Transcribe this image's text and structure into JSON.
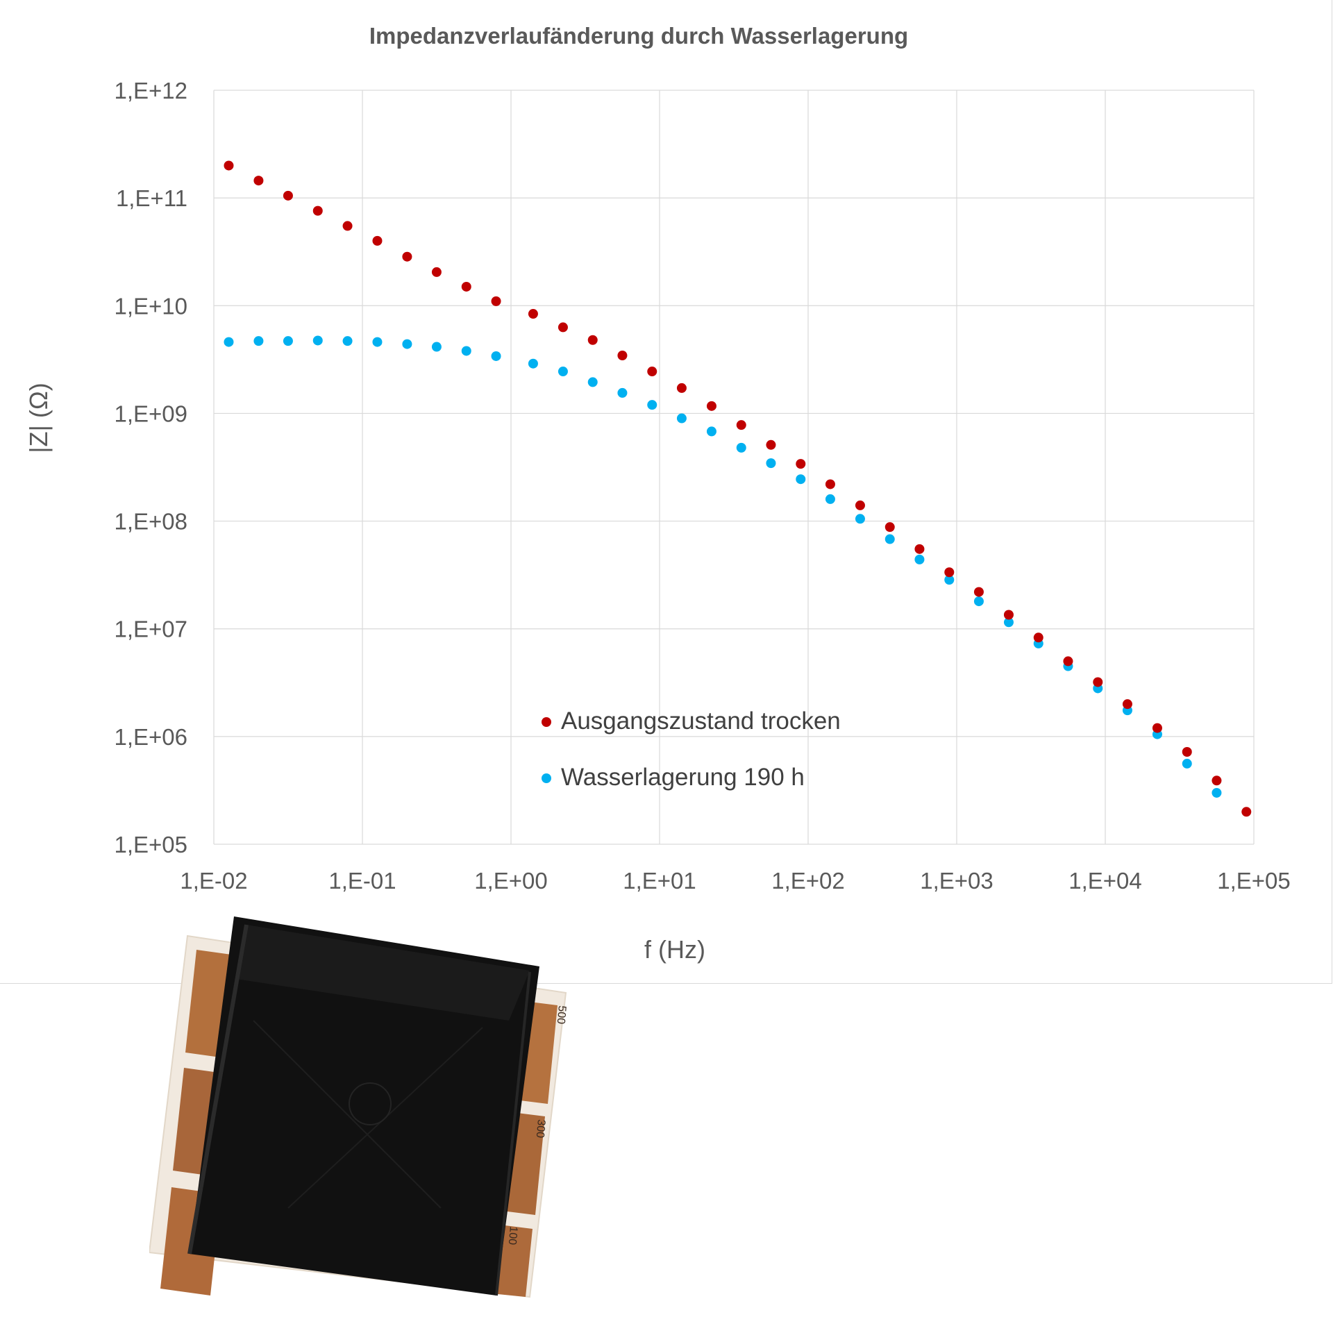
{
  "chart_data": {
    "type": "scatter",
    "title": "Impedanzverlaufänderung durch Wasserlagerung",
    "xlabel": "f (Hz)",
    "ylabel": "|Z| (Ω)",
    "x_scale": "log",
    "y_scale": "log",
    "xlim": [
      0.01,
      100000
    ],
    "ylim": [
      100000,
      1000000000000
    ],
    "x_ticks": [
      "1,E-02",
      "1,E-01",
      "1,E+00",
      "1,E+01",
      "1,E+02",
      "1,E+03",
      "1,E+04",
      "1,E+05"
    ],
    "y_ticks": [
      "1,E+05",
      "1,E+06",
      "1,E+07",
      "1,E+08",
      "1,E+09",
      "1,E+10",
      "1,E+11",
      "1,E+12"
    ],
    "grid": true,
    "legend_position": "lower-center",
    "series": [
      {
        "name": "Ausgangszustand trocken",
        "color": "#c00000",
        "x": [
          0.0126,
          0.02,
          0.0316,
          0.0501,
          0.0794,
          0.126,
          0.2,
          0.316,
          0.501,
          0.794,
          1.41,
          2.24,
          3.55,
          5.62,
          8.91,
          14.1,
          22.4,
          35.5,
          56.2,
          89.1,
          141,
          224,
          355,
          562,
          891,
          1410,
          2240,
          3550,
          5620,
          8910,
          14100,
          22400,
          35500,
          56200,
          89100
        ],
        "y": [
          200000000000.0,
          145000000000.0,
          105000000000.0,
          76000000000.0,
          55000000000.0,
          40000000000.0,
          28500000000.0,
          20500000000.0,
          15000000000.0,
          11000000000.0,
          8400000000.0,
          6300000000.0,
          4800000000.0,
          3450000000.0,
          2450000000.0,
          1720000000.0,
          1170000000.0,
          780000000.0,
          510000000.0,
          340000000.0,
          220000000.0,
          140000000.0,
          88000000.0,
          55000000.0,
          33500000.0,
          22000000.0,
          13500000.0,
          8300000.0,
          5000000.0,
          3200000.0,
          2000000.0,
          1200000.0,
          720000.0,
          390000.0,
          200000.0
        ]
      },
      {
        "name": "Wasserlagerung 190 h",
        "color": "#00b0f0",
        "x": [
          0.0126,
          0.02,
          0.0316,
          0.0501,
          0.0794,
          0.126,
          0.2,
          0.316,
          0.501,
          0.794,
          1.41,
          2.24,
          3.55,
          5.62,
          8.91,
          14.1,
          22.4,
          35.5,
          56.2,
          89.1,
          141,
          224,
          355,
          562,
          891,
          1410,
          2240,
          3550,
          5620,
          8910,
          14100,
          22400,
          35500,
          56200
        ],
        "y": [
          4600000000.0,
          4700000000.0,
          4700000000.0,
          4750000000.0,
          4700000000.0,
          4600000000.0,
          4400000000.0,
          4150000000.0,
          3800000000.0,
          3400000000.0,
          2900000000.0,
          2450000000.0,
          1950000000.0,
          1550000000.0,
          1200000000.0,
          900000000.0,
          680000000.0,
          480000000.0,
          345000000.0,
          245000000.0,
          160000000.0,
          105000000.0,
          68000000.0,
          44000000.0,
          28500000.0,
          18000000.0,
          11500000.0,
          7300000.0,
          4500000.0,
          2800000.0,
          1750000.0,
          1050000.0,
          560000.0,
          300000.0
        ]
      }
    ]
  },
  "photo": {
    "label_top": "500",
    "label_mid": "300",
    "label_bot": "100"
  }
}
